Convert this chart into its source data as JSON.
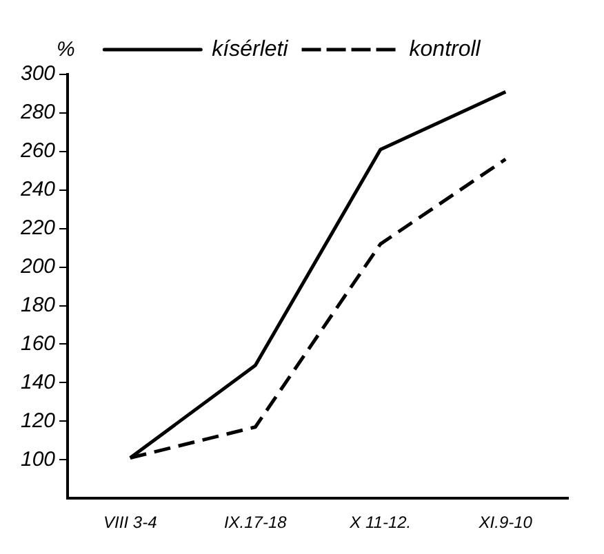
{
  "chart_data": {
    "type": "line",
    "ylabel": "%",
    "categories": [
      "VIII 3-4",
      "IX.17-18",
      "X 11-12.",
      "XI.9-10"
    ],
    "series": [
      {
        "name": "kísérleti",
        "color": "#000000",
        "values": [
          101,
          149,
          261,
          291
        ],
        "line_style": "solid"
      },
      {
        "name": "kontroll",
        "color": "#000000",
        "values": [
          101,
          117,
          212,
          256
        ],
        "line_style": "dashed"
      }
    ],
    "ylim": [
      80,
      300
    ],
    "yticks": [
      100,
      120,
      140,
      160,
      180,
      200,
      220,
      240,
      260,
      280,
      300
    ],
    "grid": false,
    "legend": "top",
    "marker": "none"
  }
}
